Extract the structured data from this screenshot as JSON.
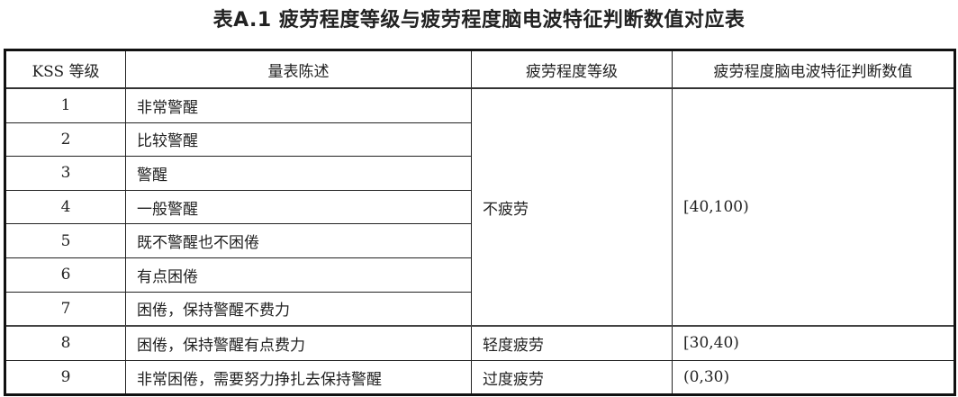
{
  "title": "表A.1  疲劳程度等级与疲劳程度脑电波特征判断数值对应表",
  "table": {
    "headers": [
      "KSS 等级",
      "量表陈述",
      "疲劳程度等级",
      "疲劳程度脑电波特征判断数值"
    ],
    "rows": [
      {
        "kss": "1",
        "statement": "非常警醒"
      },
      {
        "kss": "2",
        "statement": "比较警醒"
      },
      {
        "kss": "3",
        "statement": "警醒"
      },
      {
        "kss": "4",
        "statement": "一般警醒"
      },
      {
        "kss": "5",
        "statement": "既不警醒也不困倦"
      },
      {
        "kss": "6",
        "statement": "有点困倦"
      },
      {
        "kss": "7",
        "statement": "困倦，保持警醒不费力"
      },
      {
        "kss": "8",
        "statement": "困倦，保持警醒有点费力"
      },
      {
        "kss": "9",
        "statement": "非常困倦，需要努力挣扎去保持警醒"
      }
    ],
    "groups": [
      {
        "level": "不疲劳",
        "range": "[40,100)"
      },
      {
        "level": "轻度疲劳",
        "range": "[30,40)"
      },
      {
        "level": "过度疲劳",
        "range": "(0,30)"
      }
    ]
  }
}
